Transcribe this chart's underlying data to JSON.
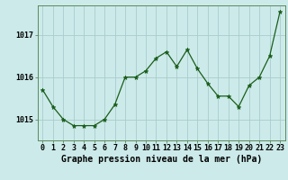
{
  "hours": [
    0,
    1,
    2,
    3,
    4,
    5,
    6,
    7,
    8,
    9,
    10,
    11,
    12,
    13,
    14,
    15,
    16,
    17,
    18,
    19,
    20,
    21,
    22,
    23
  ],
  "pressure": [
    1015.7,
    1015.3,
    1015.0,
    1014.85,
    1014.85,
    1014.85,
    1015.0,
    1015.35,
    1016.0,
    1016.0,
    1016.15,
    1016.45,
    1016.6,
    1016.25,
    1016.65,
    1016.2,
    1015.85,
    1015.55,
    1015.55,
    1015.3,
    1015.8,
    1016.0,
    1016.5,
    1017.55
  ],
  "line_color": "#1a5e1a",
  "marker": "*",
  "marker_size": 3.5,
  "bg_color": "#cceaea",
  "grid_color": "#aacccc",
  "xlabel": "Graphe pression niveau de la mer (hPa)",
  "xlabel_fontsize": 7,
  "tick_fontsize": 6,
  "ylim": [
    1014.5,
    1017.7
  ],
  "yticks": [
    1015,
    1016,
    1017
  ],
  "xticks": [
    0,
    1,
    2,
    3,
    4,
    5,
    6,
    7,
    8,
    9,
    10,
    11,
    12,
    13,
    14,
    15,
    16,
    17,
    18,
    19,
    20,
    21,
    22,
    23
  ],
  "spine_color": "#5a8a5a"
}
